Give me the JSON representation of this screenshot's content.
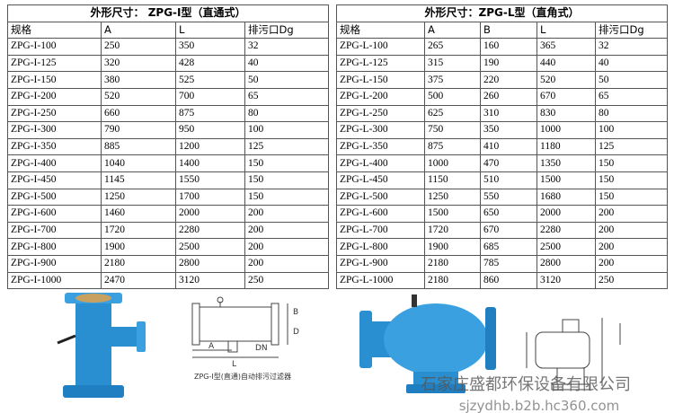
{
  "tables": [
    {
      "title": "外形尺寸： ZPG-I型（直通式）",
      "columns": [
        "规格",
        "A",
        "L",
        "排污口Dg"
      ],
      "rows": [
        [
          "ZPG-I-100",
          250,
          350,
          32
        ],
        [
          "ZPG-I-125",
          320,
          428,
          40
        ],
        [
          "ZPG-I-150",
          380,
          525,
          50
        ],
        [
          "ZPG-I-200",
          520,
          700,
          65
        ],
        [
          "ZPG-I-250",
          660,
          875,
          80
        ],
        [
          "ZPG-I-300",
          790,
          950,
          100
        ],
        [
          "ZPG-I-350",
          885,
          1200,
          125
        ],
        [
          "ZPG-I-400",
          1040,
          1400,
          150
        ],
        [
          "ZPG-I-450",
          1145,
          1550,
          150
        ],
        [
          "ZPG-I-500",
          1250,
          1700,
          150
        ],
        [
          "ZPG-I-600",
          1460,
          2000,
          200
        ],
        [
          "ZPG-I-700",
          1720,
          2280,
          200
        ],
        [
          "ZPG-I-800",
          1900,
          2500,
          200
        ],
        [
          "ZPG-I-900",
          2180,
          2800,
          200
        ],
        [
          "ZPG-I-1000",
          2470,
          3120,
          250
        ]
      ]
    },
    {
      "title": "外形尺寸：ZPG-L型（直角式）",
      "columns": [
        "规格",
        "A",
        "B",
        "L",
        "排污口Dg"
      ],
      "rows": [
        [
          "ZPG-L-100",
          265,
          160,
          365,
          32
        ],
        [
          "ZPG-L-125",
          315,
          190,
          440,
          40
        ],
        [
          "ZPG-L-150",
          375,
          220,
          520,
          50
        ],
        [
          "ZPG-L-200",
          500,
          260,
          670,
          65
        ],
        [
          "ZPG-L-250",
          625,
          310,
          830,
          80
        ],
        [
          "ZPG-L-300",
          750,
          350,
          1000,
          100
        ],
        [
          "ZPG-L-350",
          875,
          410,
          1180,
          125
        ],
        [
          "ZPG-L-400",
          1000,
          470,
          1350,
          150
        ],
        [
          "ZPG-L-450",
          1150,
          510,
          1500,
          150
        ],
        [
          "ZPG-L-500",
          1250,
          550,
          1680,
          150
        ],
        [
          "ZPG-L-600",
          1500,
          650,
          2000,
          200
        ],
        [
          "ZPG-L-700",
          1720,
          670,
          2280,
          200
        ],
        [
          "ZPG-L-800",
          1900,
          685,
          2500,
          200
        ],
        [
          "ZPG-L-900",
          2180,
          785,
          2800,
          200
        ],
        [
          "ZPG-L-1000",
          2180,
          860,
          3120,
          250
        ]
      ]
    }
  ],
  "diagram": {
    "labels": [
      "B",
      "D",
      "A",
      "L",
      "DN"
    ],
    "caption": "ZPG-I型(直通)自动排污过滤器"
  },
  "watermark": {
    "company": "石家庄盛都环保设备有限公司",
    "url": "sjzydhb.b2b.hc360.com"
  }
}
